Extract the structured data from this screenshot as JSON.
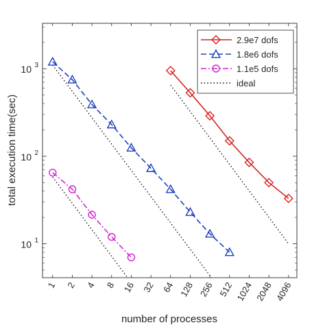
{
  "chart_data": {
    "type": "line",
    "title": "",
    "xlabel": "number of processes",
    "ylabel": "total execution time(sec)",
    "x_scale": "log2",
    "y_scale": "log10",
    "xlim": [
      0.7,
      5500
    ],
    "ylim": [
      4.1,
      3300
    ],
    "x_ticks": [
      1,
      2,
      4,
      8,
      16,
      32,
      64,
      128,
      256,
      512,
      1024,
      2048,
      4096
    ],
    "x_tick_labels": [
      "1",
      "2",
      "4",
      "8",
      "16",
      "32",
      "64",
      "128",
      "256",
      "512",
      "1024",
      "2048",
      "4096"
    ],
    "y_ticks": [
      10,
      100,
      1000
    ],
    "y_tick_labels": [
      {
        "base": "10",
        "exp": "1"
      },
      {
        "base": "10",
        "exp": "2"
      },
      {
        "base": "10",
        "exp": "3"
      }
    ],
    "grid": false,
    "legend_position": "top-right",
    "series": [
      {
        "name": "2.9e7 dofs",
        "color": "#d62020",
        "line_style": "solid",
        "marker": "diamond",
        "x": [
          64,
          128,
          256,
          512,
          1024,
          2048,
          4096
        ],
        "y": [
          950,
          530,
          290,
          150,
          85,
          50,
          33
        ]
      },
      {
        "name": "1.8e6 dofs",
        "color": "#1c3fbf",
        "line_style": "dashed",
        "marker": "triangle",
        "x": [
          1,
          2,
          4,
          8,
          16,
          32,
          64,
          128,
          256,
          512
        ],
        "y": [
          1200,
          750,
          390,
          230,
          125,
          73,
          42,
          23,
          13,
          8
        ]
      },
      {
        "name": "1.1e5 dofs",
        "color": "#d21fd2",
        "line_style": "dashdot",
        "marker": "circle",
        "x": [
          1,
          2,
          4,
          8,
          16
        ],
        "y": [
          65,
          42,
          21.5,
          12,
          7
        ]
      },
      {
        "name": "ideal",
        "color": "#111111",
        "line_style": "dotted",
        "marker": "none",
        "segments": [
          {
            "x": [
              64,
              4096
            ],
            "y": [
              650,
              10
            ]
          },
          {
            "x": [
              1,
              300
            ],
            "y": [
              1100,
              3.7
            ]
          },
          {
            "x": [
              1,
              16
            ],
            "y": [
              58,
              3.6
            ]
          }
        ]
      }
    ]
  }
}
